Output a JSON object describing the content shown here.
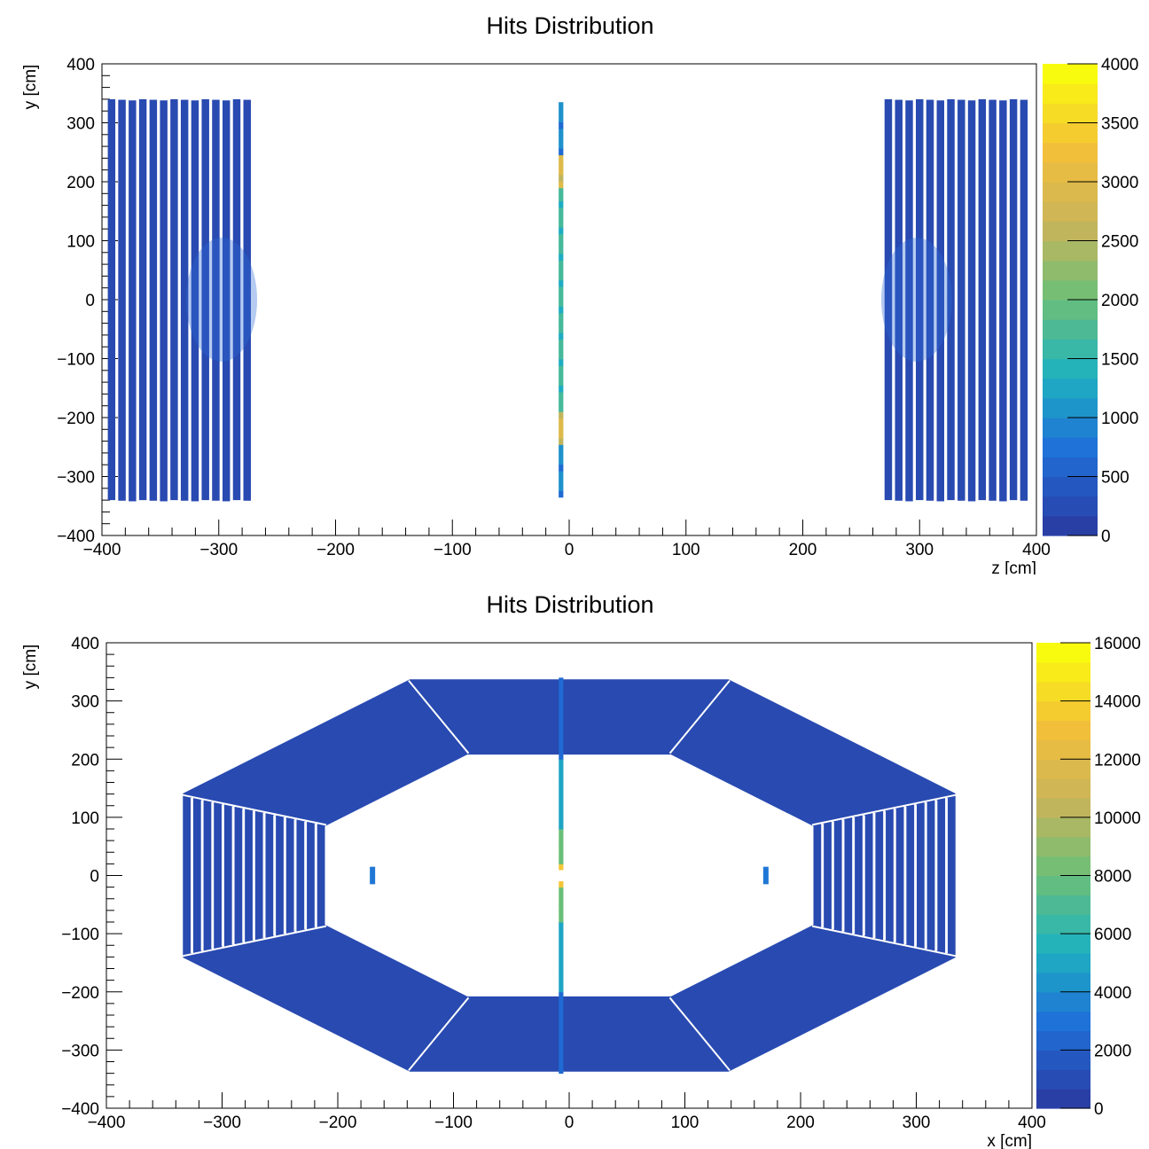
{
  "chart_data": [
    {
      "type": "heatmap",
      "title": "Hits Distribution",
      "xlabel": "z [cm]",
      "ylabel": "y [cm]",
      "xlim": [
        -400,
        400
      ],
      "ylim": [
        -400,
        400
      ],
      "xticks": [
        "−400",
        "−300",
        "−200",
        "−100",
        "0",
        "100",
        "200",
        "300",
        "400"
      ],
      "yticks": [
        "−400",
        "−300",
        "−200",
        "−100",
        "0",
        "100",
        "200",
        "300",
        "400"
      ],
      "zlim": [
        0,
        4000
      ],
      "colorbar_ticks": [
        "0",
        "500",
        "1000",
        "1500",
        "2000",
        "2500",
        "3000",
        "3500",
        "4000"
      ],
      "colorbar_values": [
        0,
        500,
        1000,
        1500,
        2000,
        2500,
        3000,
        3500,
        4000
      ],
      "colors": {
        "low": "#2a3fa6",
        "mid": "#1eb2c0",
        "high": "#f9fb0e"
      },
      "regions": [
        {
          "name": "endcap-left",
          "z": [
            -395,
            -270
          ],
          "y": [
            -340,
            340
          ],
          "value": 150
        },
        {
          "name": "central-strip",
          "z": [
            -9,
            -5
          ],
          "y": [
            -335,
            335
          ],
          "value": 1500
        },
        {
          "name": "endcap-right",
          "z": [
            270,
            395
          ],
          "y": [
            -340,
            340
          ],
          "value": 150
        }
      ]
    },
    {
      "type": "heatmap",
      "title": "Hits Distribution",
      "xlabel": "x [cm]",
      "ylabel": "y [cm]",
      "xlim": [
        -400,
        400
      ],
      "ylim": [
        -400,
        400
      ],
      "xticks": [
        "−400",
        "−300",
        "−200",
        "−100",
        "0",
        "100",
        "200",
        "300",
        "400"
      ],
      "yticks": [
        "−400",
        "−300",
        "−200",
        "−100",
        "0",
        "100",
        "200",
        "300",
        "400"
      ],
      "zlim": [
        0,
        16000
      ],
      "colorbar_ticks": [
        "0",
        "2000",
        "4000",
        "6000",
        "8000",
        "10000",
        "12000",
        "14000",
        "16000"
      ],
      "colorbar_values": [
        0,
        2000,
        4000,
        6000,
        8000,
        10000,
        12000,
        14000,
        16000
      ],
      "colors": {
        "low": "#2a3fa6",
        "mid": "#1eb2c0",
        "high": "#f9fb0e"
      },
      "regions": [
        {
          "name": "octagon-barrel",
          "inner_apothem": 210,
          "outer_apothem": 335,
          "value": 600
        },
        {
          "name": "central-strip",
          "x": [
            -9,
            -5
          ],
          "y": [
            -340,
            340
          ],
          "value": 4000
        },
        {
          "name": "left-marker",
          "x": [
            -170
          ],
          "y": [
            -15,
            15
          ],
          "value": 3000
        },
        {
          "name": "right-marker",
          "x": [
            170
          ],
          "y": [
            -15,
            15
          ],
          "value": 3000
        }
      ]
    }
  ]
}
